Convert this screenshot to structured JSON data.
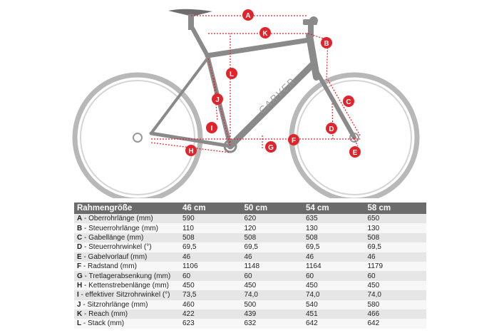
{
  "diagram": {
    "brand_text": "CARVER",
    "markers": [
      {
        "id": "A"
      },
      {
        "id": "B"
      },
      {
        "id": "C"
      },
      {
        "id": "D"
      },
      {
        "id": "E"
      },
      {
        "id": "F"
      },
      {
        "id": "G"
      },
      {
        "id": "H"
      },
      {
        "id": "I"
      },
      {
        "id": "J"
      },
      {
        "id": "K"
      },
      {
        "id": "L"
      }
    ],
    "colors": {
      "marker": "#e1242c",
      "frame": "#8a8a8a",
      "guide": "#e1242c"
    }
  },
  "table": {
    "header": [
      "Rahmengröße",
      "46 cm",
      "50 cm",
      "54 cm",
      "58 cm"
    ],
    "rows": [
      {
        "code": "A",
        "label": " - Oberrohrlänge (mm)",
        "values": [
          "590",
          "620",
          "635",
          "650"
        ]
      },
      {
        "code": "B",
        "label": " - Steuerrohrlänge (mm)",
        "values": [
          "110",
          "120",
          "130",
          "130"
        ]
      },
      {
        "code": "C",
        "label": " - Gabellänge (mm)",
        "values": [
          "508",
          "508",
          "508",
          "508"
        ]
      },
      {
        "code": "D",
        "label": " - Steuerrohrwinkel (°)",
        "values": [
          "69,5",
          "69,5",
          "69,5",
          "69,5"
        ]
      },
      {
        "code": "E",
        "label": " - Gabelvorlauf (mm)",
        "values": [
          "46",
          "46",
          "46",
          "46"
        ]
      },
      {
        "code": "F",
        "label": " - Radstand (mm)",
        "values": [
          "1106",
          "1148",
          "1164",
          "1179"
        ]
      },
      {
        "code": "G",
        "label": " - Tretlagerabsenkung (mm)",
        "values": [
          "60",
          "60",
          "60",
          "60"
        ]
      },
      {
        "code": "H",
        "label": " - Kettenstrebenlänge (mm)",
        "values": [
          "450",
          "450",
          "450",
          "450"
        ]
      },
      {
        "code": "I",
        "label": " - effektiver Sitzrohrwinkel (°)",
        "values": [
          "73,5",
          "74,0",
          "74,0",
          "74,0"
        ]
      },
      {
        "code": "J",
        "label": " - Sitzrohrlänge (mm)",
        "values": [
          "460",
          "500",
          "540",
          "580"
        ]
      },
      {
        "code": "K",
        "label": " - Reach (mm)",
        "values": [
          "422",
          "439",
          "451",
          "466"
        ]
      },
      {
        "code": "L",
        "label": " - Stack (mm)",
        "values": [
          "623",
          "632",
          "642",
          "642"
        ]
      }
    ]
  }
}
